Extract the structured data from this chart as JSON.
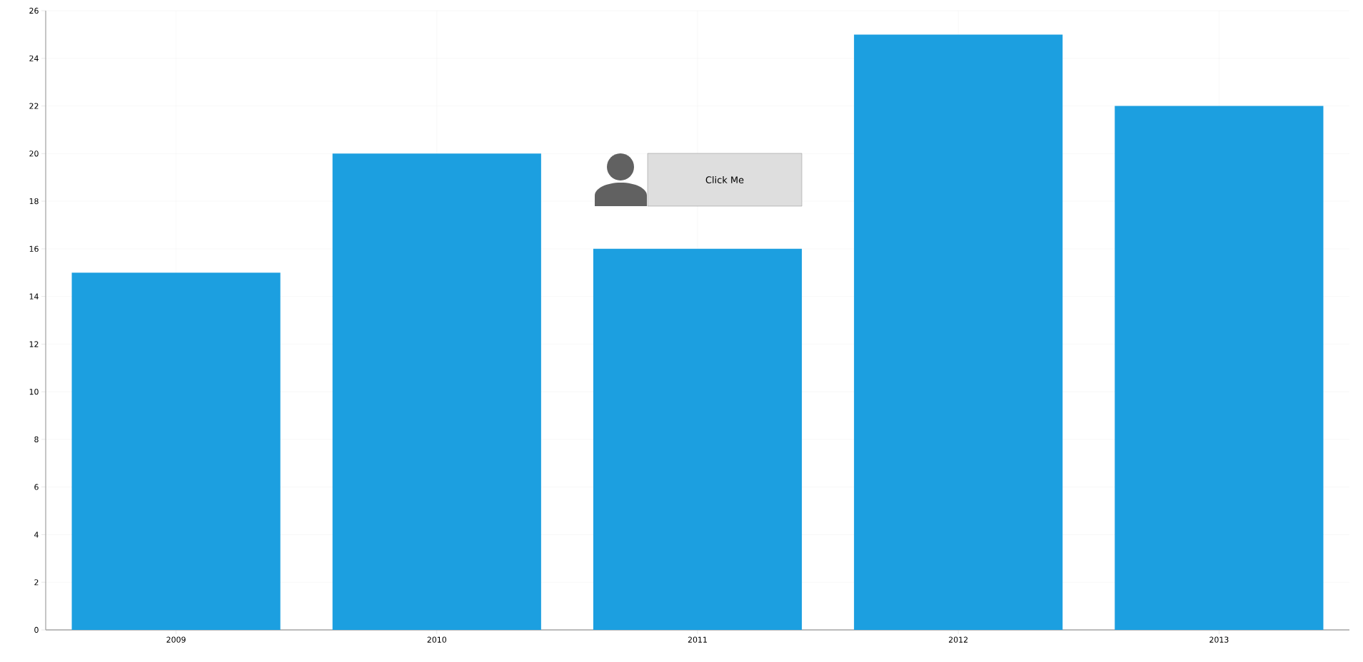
{
  "chart_data": {
    "type": "bar",
    "categories": [
      "2009",
      "2010",
      "2011",
      "2012",
      "2013"
    ],
    "values": [
      15,
      20,
      16,
      25,
      22
    ],
    "color": "#1c9fe0",
    "ylim": [
      0,
      26
    ],
    "yticks": [
      0,
      2,
      4,
      6,
      8,
      10,
      12,
      14,
      16,
      18,
      20,
      22,
      24,
      26
    ],
    "grid": true,
    "annotations": [
      "Click Me"
    ]
  }
}
